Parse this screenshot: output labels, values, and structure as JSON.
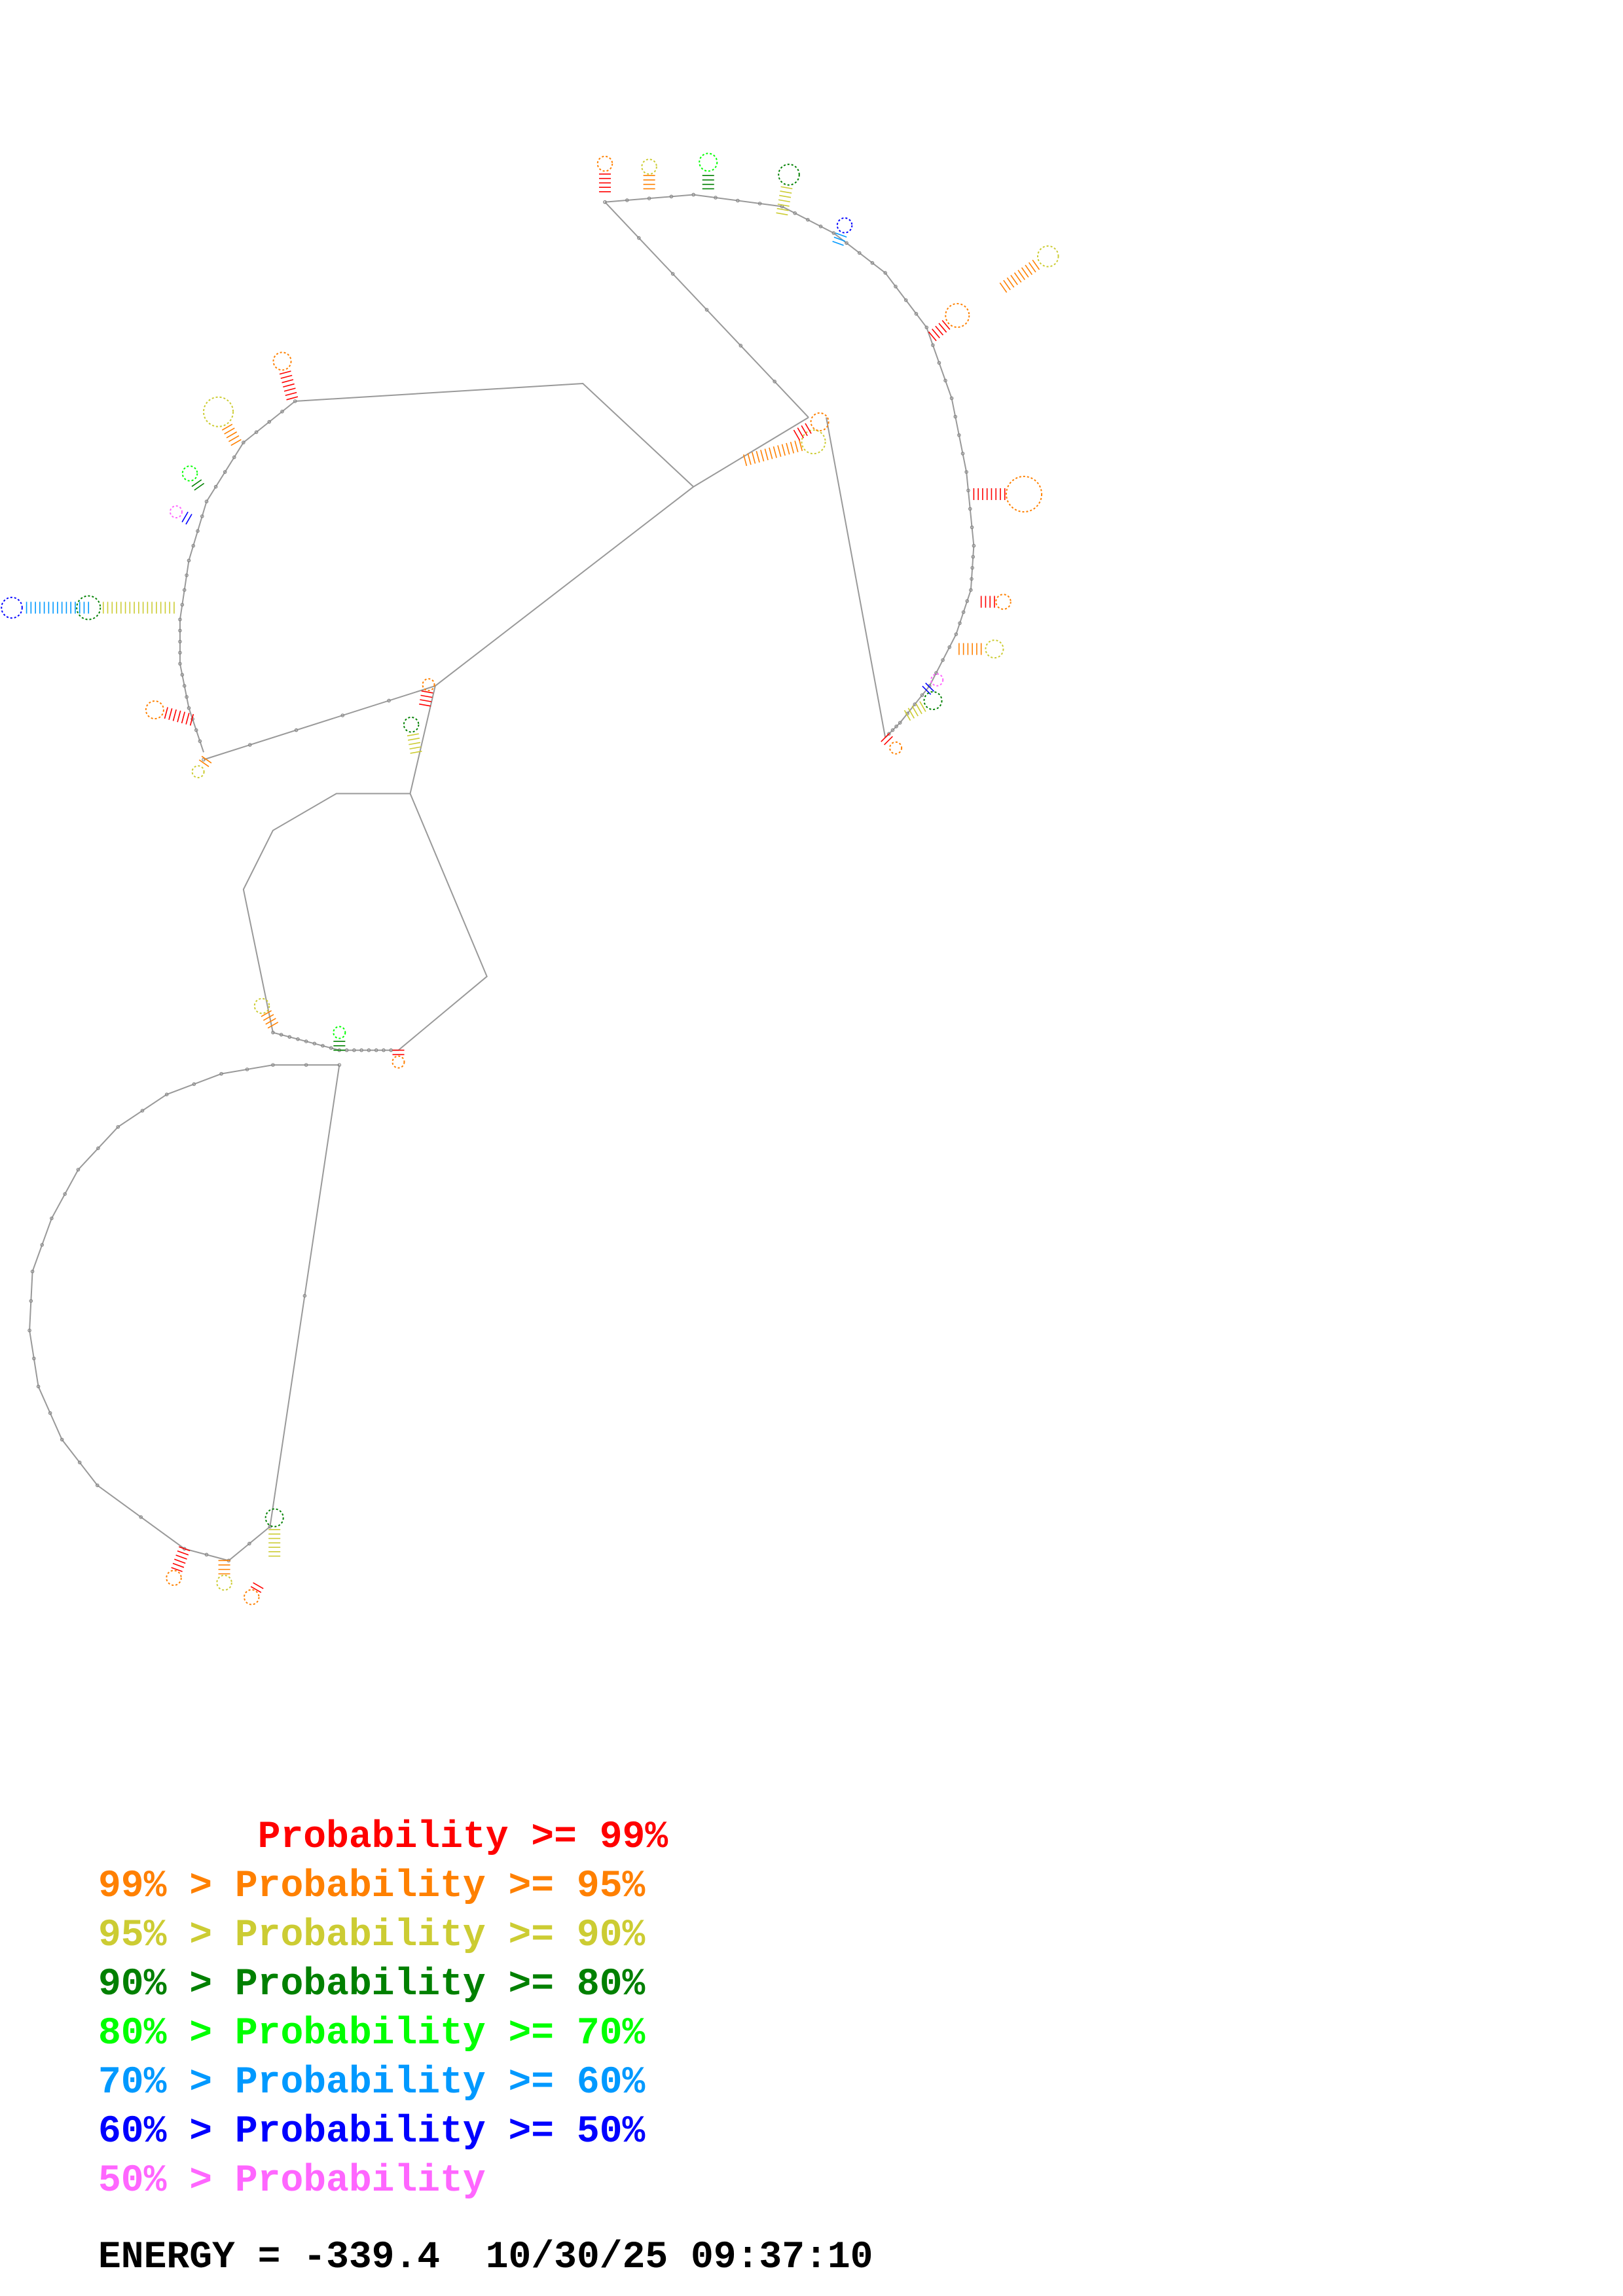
{
  "legend": {
    "rows": [
      {
        "text": "       Probability >= 99%",
        "color": "#ff0000"
      },
      {
        "text": "99% > Probability >= 95%",
        "color": "#ff8000"
      },
      {
        "text": "95% > Probability >= 90%",
        "color": "#cccc33"
      },
      {
        "text": "90% > Probability >= 80%",
        "color": "#008000"
      },
      {
        "text": "80% > Probability >= 70%",
        "color": "#00ff00"
      },
      {
        "text": "70% > Probability >= 60%",
        "color": "#0099ff"
      },
      {
        "text": "60% > Probability >= 50%",
        "color": "#0000ff"
      },
      {
        "text": "50% > Probability",
        "color": "#ff66ff"
      }
    ]
  },
  "footer": {
    "energy_label": "ENERGY =",
    "energy_value": "-339.4",
    "timestamp": "10/30/25 09:37:10"
  },
  "diagram": {
    "backbone_color": "#999999",
    "nucleotide_color": "#888888"
  }
}
